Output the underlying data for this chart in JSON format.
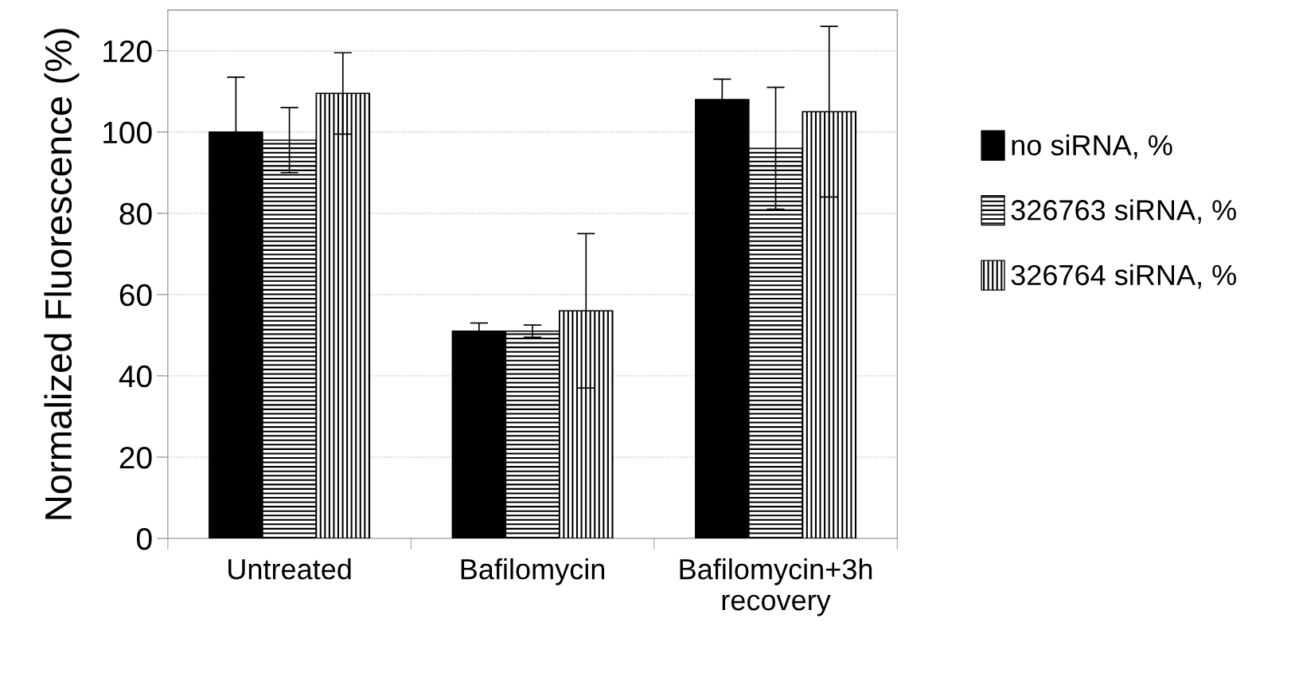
{
  "chart_data": {
    "type": "bar",
    "ylabel": "Normalized Fluorescence (%)",
    "categories": [
      "Untreated",
      "Bafilomycin",
      "Bafilomycin+3h\nrecovery"
    ],
    "series": [
      {
        "name": "no siRNA, %",
        "color": "#000000",
        "values": [
          100,
          51,
          108
        ],
        "errors": [
          13.5,
          2,
          5
        ]
      },
      {
        "name": "326763 siRNA, %",
        "color": "#000000",
        "values": [
          98,
          51,
          96
        ],
        "errors": [
          8,
          1.5,
          15
        ]
      },
      {
        "name": "326764 siRNA, %",
        "color": "#000000",
        "values": [
          109.5,
          56,
          105
        ],
        "errors": [
          10,
          19,
          21
        ]
      }
    ],
    "ylim": [
      0,
      130
    ],
    "yticks": [
      0,
      20,
      40,
      60,
      80,
      100,
      120
    ],
    "grid": true,
    "legend": "right"
  }
}
